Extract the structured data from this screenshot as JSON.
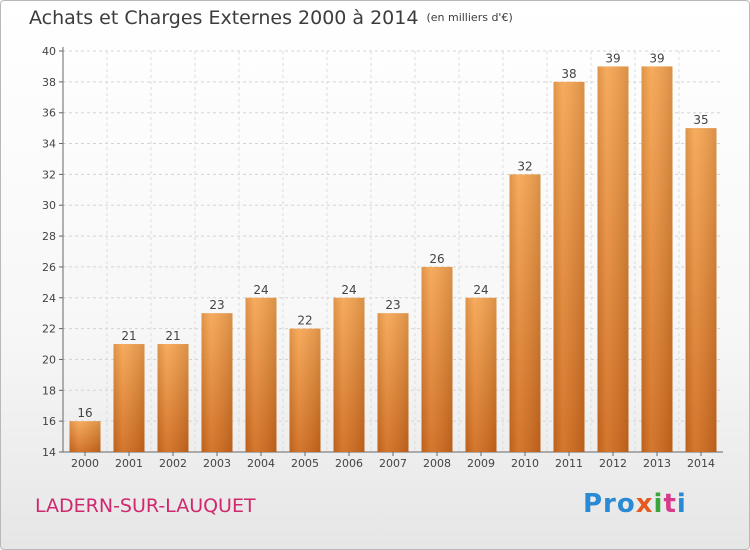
{
  "header": {
    "title": "Achats et Charges Externes 2000 à 2014",
    "subtitle": "(en milliers d'€)"
  },
  "footer": {
    "commune": "LADERN-SUR-LAUQUET",
    "logo_parts": [
      "Pro",
      "x",
      "i",
      "t",
      "i"
    ],
    "logo_colors": [
      "#2a8ad3",
      "#e45a1f",
      "#3aa53a",
      "#d83a8b",
      "#2a8ad3"
    ]
  },
  "chart_data": {
    "type": "bar",
    "categories": [
      "2000",
      "2001",
      "2002",
      "2003",
      "2004",
      "2005",
      "2006",
      "2007",
      "2008",
      "2009",
      "2010",
      "2011",
      "2012",
      "2013",
      "2014"
    ],
    "values": [
      16,
      21,
      21,
      23,
      24,
      22,
      24,
      23,
      26,
      24,
      32,
      38,
      39,
      39,
      35
    ],
    "title": "Achats et Charges Externes 2000 à 2014",
    "subtitle": "(en milliers d'€)",
    "xlabel": "",
    "ylabel": "",
    "ylim": [
      14,
      40
    ],
    "yticks": [
      14,
      16,
      18,
      20,
      22,
      24,
      26,
      28,
      30,
      32,
      34,
      36,
      38,
      40
    ],
    "grid": true,
    "bar_color": "#f29a3c",
    "data_labels": true
  }
}
